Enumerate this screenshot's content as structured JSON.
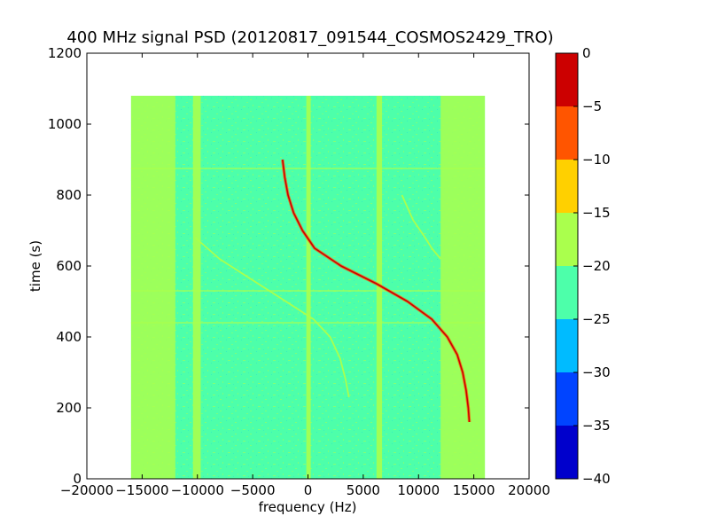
{
  "chart_data": {
    "type": "heatmap",
    "title": "400 MHz signal PSD (20120817_091544_COSMOS2429_TRO)",
    "xlabel": "frequency (Hz)",
    "ylabel": "time (s)",
    "xlim": [
      -20000,
      20000
    ],
    "ylim": [
      0,
      1200
    ],
    "x_ticks": [
      -20000,
      -15000,
      -10000,
      -5000,
      0,
      5000,
      10000,
      15000,
      20000
    ],
    "y_ticks": [
      0,
      200,
      400,
      600,
      800,
      1000,
      1200
    ],
    "data_extent": {
      "x": [
        -16000,
        16000
      ],
      "y": [
        0,
        1080
      ]
    },
    "colorbar": {
      "range": [
        -40,
        0
      ],
      "ticks": [
        0,
        -5,
        -10,
        -15,
        -20,
        -25,
        -30,
        -35,
        -40
      ],
      "levels": [
        {
          "from": -40,
          "to": -35,
          "color": "#0000cc"
        },
        {
          "from": -35,
          "to": -30,
          "color": "#0044ff"
        },
        {
          "from": -30,
          "to": -25,
          "color": "#00bbff"
        },
        {
          "from": -25,
          "to": -20,
          "color": "#4dffaa"
        },
        {
          "from": -20,
          "to": -15,
          "color": "#aaff4d"
        },
        {
          "from": -15,
          "to": -10,
          "color": "#ffd000"
        },
        {
          "from": -10,
          "to": -5,
          "color": "#ff5500"
        },
        {
          "from": -5,
          "to": 0,
          "color": "#cc0000"
        }
      ]
    },
    "background_level": -22,
    "edge_bands": [
      {
        "x": [
          -16000,
          -12000
        ],
        "level": -18
      },
      {
        "x": [
          12000,
          16000
        ],
        "level": -18
      }
    ],
    "vertical_lines": [
      {
        "x_start": -10400,
        "x_end": -9700,
        "level": -16
      },
      {
        "x_start": -150,
        "x_end": 250,
        "level": -17
      },
      {
        "x_start": 6200,
        "x_end": 6700,
        "level": -17
      }
    ],
    "horizontal_lines": [
      {
        "y": 875,
        "level": -18
      },
      {
        "y": 530,
        "level": -18
      },
      {
        "y": 440,
        "level": -19
      }
    ],
    "tracks": [
      {
        "name": "",
        "level": -2,
        "points": [
          [
            -2300,
            900
          ],
          [
            -2100,
            850
          ],
          [
            -1800,
            800
          ],
          [
            -1300,
            750
          ],
          [
            -500,
            700
          ],
          [
            600,
            650
          ],
          [
            3000,
            600
          ],
          [
            6200,
            550
          ],
          [
            9000,
            500
          ],
          [
            11200,
            450
          ],
          [
            12600,
            400
          ],
          [
            13500,
            350
          ],
          [
            14000,
            300
          ],
          [
            14300,
            250
          ],
          [
            14500,
            200
          ],
          [
            14600,
            160
          ]
        ]
      },
      {
        "name": "",
        "level": -16,
        "points": [
          [
            -10200,
            680
          ],
          [
            -8000,
            620
          ],
          [
            -5000,
            560
          ],
          [
            -2000,
            500
          ],
          [
            500,
            450
          ],
          [
            2000,
            400
          ],
          [
            2900,
            340
          ],
          [
            3400,
            280
          ],
          [
            3700,
            230
          ]
        ]
      },
      {
        "name": "",
        "level": -17,
        "points": [
          [
            8500,
            800
          ],
          [
            9500,
            730
          ],
          [
            10600,
            680
          ],
          [
            11200,
            650
          ],
          [
            12000,
            620
          ]
        ]
      }
    ]
  }
}
